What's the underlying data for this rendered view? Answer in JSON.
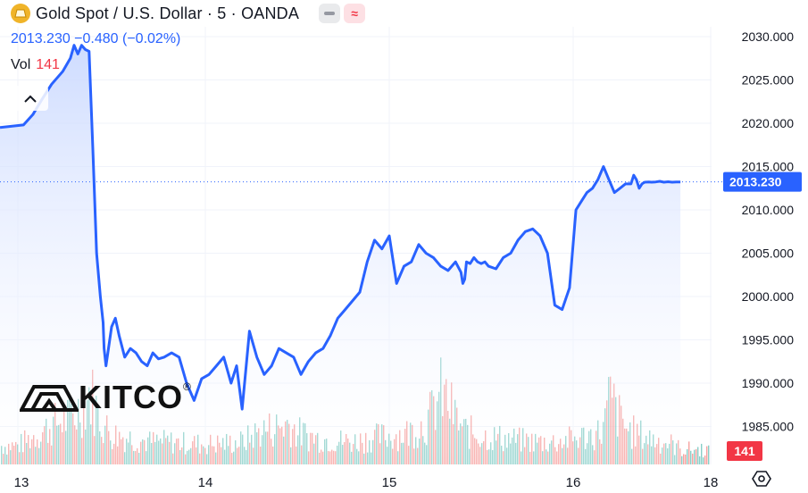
{
  "header": {
    "title": "Gold Spot / U.S. Dollar · 5 · OANDA",
    "price_line": "2013.230 −0.480 (−0.02%)",
    "vol_label": "Vol",
    "vol_value": "141",
    "hide_indicator_icon": "minus-pill-icon",
    "wave_icon": "wave-icon",
    "collapse_icon": "chevron-up-icon",
    "settings_icon": "gear-hex-icon"
  },
  "watermark": {
    "text": "KITCO",
    "reg": "®"
  },
  "colors": {
    "line": "#2962ff",
    "area_top": "#c9d8ff",
    "area_bottom": "#ffffff",
    "volume_up": "#26a69a",
    "volume_down": "#ef5350",
    "price_label_bg": "#2962ff",
    "vol_label_bg": "#f23645",
    "grid": "#f0f3fa",
    "axis_text": "#131722"
  },
  "chart_data": {
    "type": "area",
    "title": "Gold Spot / U.S. Dollar",
    "interval": "5",
    "source": "OANDA",
    "xlabel": "",
    "ylabel": "",
    "x_ticks": [
      "13",
      "14",
      "15",
      "16",
      "18"
    ],
    "y_ticks": [
      "1985.000",
      "1990.000",
      "1995.000",
      "2000.000",
      "2005.000",
      "2010.000",
      "2015.000",
      "2020.000",
      "2025.000",
      "2030.000"
    ],
    "ylim": [
      1981.8,
      2032.5
    ],
    "xlim": [
      0,
      3.9
    ],
    "grid": true,
    "last_price": "2013.230",
    "last_volume": "141",
    "series": [
      {
        "x": [
          0.0,
          0.03,
          0.08,
          0.13,
          0.18,
          0.24,
          0.28,
          0.3,
          0.32,
          0.34,
          0.36,
          0.38,
          0.4,
          0.42,
          0.44,
          0.455,
          0.46,
          0.47,
          0.48,
          0.5,
          0.52,
          0.54,
          0.57,
          0.6,
          0.63,
          0.66,
          0.69,
          0.72,
          0.75,
          0.78,
          0.82,
          0.86,
          0.9,
          0.94,
          0.98,
          1.02,
          1.06,
          1.1,
          1.14,
          1.17,
          1.2,
          1.24,
          1.28,
          1.32,
          1.36,
          1.4,
          1.44,
          1.48,
          1.52,
          1.56,
          1.6,
          1.64,
          1.68,
          1.72,
          1.76,
          1.8,
          1.84,
          1.88,
          1.92,
          1.96,
          2.0,
          2.04,
          2.08,
          2.12,
          2.16,
          2.2,
          2.24,
          2.28,
          2.32,
          2.36,
          2.39,
          2.4,
          2.41,
          2.42,
          2.44,
          2.46,
          2.48,
          2.5,
          2.52,
          2.54,
          2.58,
          2.62,
          2.66,
          2.7,
          2.74,
          2.78,
          2.82,
          2.86,
          2.9,
          2.94,
          2.98,
          3.02,
          3.06,
          3.1,
          3.14,
          3.18,
          3.22,
          3.26,
          3.3,
          3.34,
          3.38,
          3.4,
          3.42,
          3.44,
          3.46,
          3.48,
          3.5,
          3.52,
          3.55,
          3.57,
          3.6,
          3.63,
          3.66,
          3.69,
          3.72,
          3.75,
          3.78
        ],
        "values": [
          2019.5,
          2019.8,
          2021.0,
          2022.8,
          2024.5,
          2026.0,
          2027.5,
          2029.0,
          2028.0,
          2029.0,
          2028.5,
          2028.3,
          2017.0,
          2005.0,
          2000.0,
          1997.0,
          1994.0,
          1992.0,
          1993.5,
          1996.5,
          1997.5,
          1995.5,
          1993.0,
          1994.0,
          1993.5,
          1992.5,
          1992.0,
          1993.5,
          1992.8,
          1993.0,
          1993.5,
          1993.0,
          1990.0,
          1988.0,
          1990.5,
          1991.0,
          1992.0,
          1993.0,
          1990.0,
          1992.0,
          1987.0,
          1996.0,
          1993.0,
          1991.0,
          1992.0,
          1994.0,
          1993.5,
          1993.0,
          1991.0,
          1992.5,
          1993.5,
          1994.0,
          1995.5,
          1997.5,
          1998.5,
          1999.5,
          2000.5,
          2004.0,
          2006.5,
          2005.5,
          2007.0,
          2001.5,
          2003.5,
          2004.0,
          2006.0,
          2005.0,
          2004.5,
          2003.5,
          2003.0,
          2004.0,
          2002.8,
          2001.5,
          2002.0,
          2004.0,
          2003.8,
          2004.5,
          2004.0,
          2003.8,
          2004.0,
          2003.5,
          2003.2,
          2004.5,
          2005.0,
          2006.5,
          2007.5,
          2007.8,
          2007.0,
          2005.0,
          1999.0,
          1998.5,
          2001.0,
          2010.0,
          2011.0,
          2012.0,
          2012.5,
          2013.5,
          2015.0,
          2013.5,
          2012.0,
          2012.5,
          2013.0,
          2013.0,
          2013.0,
          2014.0,
          2013.5,
          2012.5,
          2013.0,
          2013.2,
          2013.23,
          2013.2,
          2013.23,
          2013.3,
          2013.2,
          2013.25,
          2013.2,
          2013.23,
          2013.23
        ]
      }
    ],
    "volume": {
      "x": [
        0.0,
        0.1,
        0.2,
        0.3,
        0.38,
        0.4,
        0.42,
        0.46,
        0.5,
        0.6,
        0.7,
        0.8,
        0.9,
        1.0,
        1.1,
        1.2,
        1.3,
        1.4,
        1.45,
        1.5,
        1.6,
        1.7,
        1.8,
        1.9,
        2.0,
        2.1,
        2.2,
        2.28,
        2.32,
        2.36,
        2.4,
        2.5,
        2.6,
        2.7,
        2.8,
        2.9,
        3.0,
        3.1,
        3.18,
        3.22,
        3.26,
        3.3,
        3.35,
        3.4,
        3.5,
        3.6,
        3.7,
        3.78
      ],
      "values": [
        25,
        40,
        55,
        65,
        95,
        85,
        70,
        50,
        40,
        35,
        30,
        30,
        28,
        27,
        28,
        30,
        45,
        50,
        55,
        42,
        35,
        32,
        30,
        35,
        38,
        42,
        55,
        95,
        80,
        60,
        45,
        38,
        35,
        32,
        30,
        30,
        34,
        38,
        42,
        50,
        90,
        75,
        55,
        45,
        38,
        32,
        28,
        20
      ]
    }
  }
}
